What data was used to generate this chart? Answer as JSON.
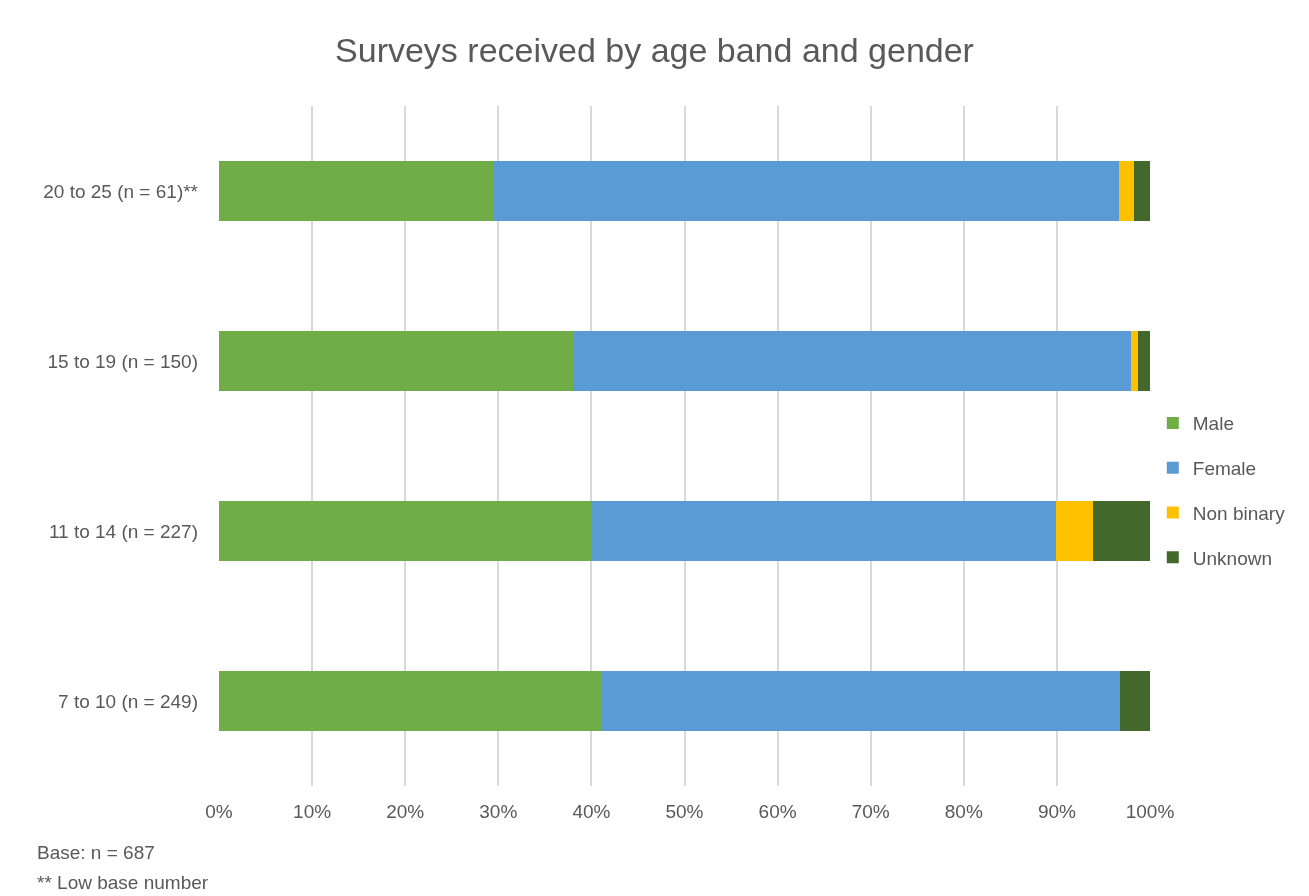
{
  "chart_data": {
    "type": "bar",
    "orientation": "horizontal",
    "stacked": true,
    "title": "Surveys received by age band and gender",
    "categories": [
      "20 to 25 (n = 61)**",
      "15 to 19 (n = 150)",
      "11 to 14 (n = 227)",
      "7 to 10 (n = 249)"
    ],
    "series": [
      {
        "name": "Male",
        "color": "#70ad47",
        "values": [
          29.5,
          38.0,
          40.1,
          41.0
        ]
      },
      {
        "name": "Female",
        "color": "#5b9bd5",
        "values": [
          67.2,
          60.0,
          49.8,
          55.8
        ]
      },
      {
        "name": "Non binary",
        "color": "#ffc000",
        "values": [
          1.6,
          0.7,
          4.0,
          0
        ]
      },
      {
        "name": "Unknown",
        "color": "#43682b",
        "values": [
          1.7,
          1.3,
          6.1,
          3.2
        ]
      }
    ],
    "xlim": [
      0,
      100
    ],
    "xticks": [
      {
        "value": 0,
        "label": "0%"
      },
      {
        "value": 10,
        "label": "10%"
      },
      {
        "value": 20,
        "label": "20%"
      },
      {
        "value": 30,
        "label": "30%"
      },
      {
        "value": 40,
        "label": "40%"
      },
      {
        "value": 50,
        "label": "50%"
      },
      {
        "value": 60,
        "label": "60%"
      },
      {
        "value": 70,
        "label": "70%"
      },
      {
        "value": 80,
        "label": "80%"
      },
      {
        "value": 90,
        "label": "90%"
      },
      {
        "value": 100,
        "label": "100%"
      }
    ],
    "grid": "x",
    "legend": "right",
    "annotations": [
      "Base: n = 687",
      "** Low base number"
    ]
  }
}
